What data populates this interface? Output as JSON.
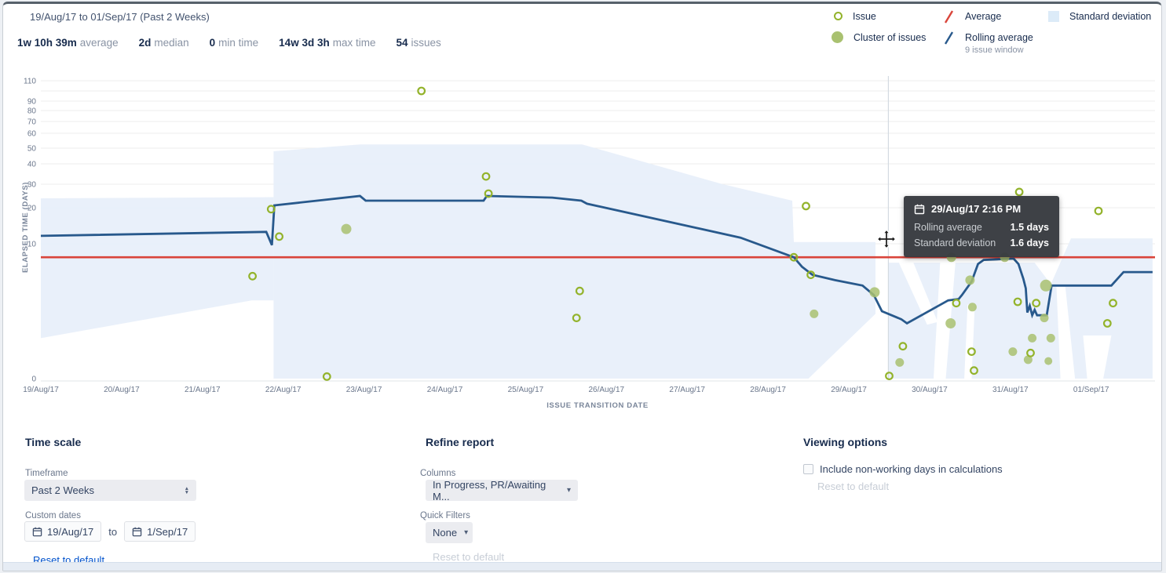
{
  "header": {
    "date_range": "19/Aug/17 to 01/Sep/17 (Past 2 Weeks)",
    "stats": [
      {
        "value": "1w 10h 39m",
        "label": "average"
      },
      {
        "value": "2d",
        "label": "median"
      },
      {
        "value": "0",
        "label": "min time"
      },
      {
        "value": "14w 3d 3h",
        "label": "max time"
      },
      {
        "value": "54",
        "label": "issues"
      }
    ]
  },
  "legend": {
    "issue": "Issue",
    "cluster": "Cluster of issues",
    "average": "Average",
    "rolling": "Rolling average",
    "rolling_sub": "9 issue window",
    "stddev": "Standard deviation"
  },
  "colors": {
    "issue_stroke": "#93b32b",
    "cluster_fill": "#a9c170",
    "average_line": "#d9453b",
    "rolling_line": "#28598c",
    "stddev_band": "#e7effa",
    "grid": "#ededed",
    "tick_text": "#6b778c",
    "axis_title": "#7a869a",
    "link": "#0052cc"
  },
  "chart_data": {
    "type": "line",
    "xlabel": "ISSUE TRANSITION DATE",
    "ylabel": "ELAPSED TIME (DAYS)",
    "x_tick_labels": [
      "19/Aug/17",
      "20/Aug/17",
      "21/Aug/17",
      "22/Aug/17",
      "23/Aug/17",
      "24/Aug/17",
      "25/Aug/17",
      "26/Aug/17",
      "27/Aug/17",
      "28/Aug/17",
      "29/Aug/17",
      "30/Aug/17",
      "31/Aug/17",
      "01/Sep/17"
    ],
    "y_ticks": [
      0,
      10,
      20,
      30,
      40,
      50,
      60,
      70,
      80,
      90,
      110
    ],
    "y_gridlines": [
      10,
      20,
      30,
      40,
      50,
      60,
      70,
      80,
      90,
      100,
      110
    ],
    "y_scale": "nonlinear-compressed-top",
    "average_value": 9,
    "hover_day": 10.49,
    "rolling_average_series": [
      [
        0,
        12.2
      ],
      [
        2.79,
        13.3
      ],
      [
        2.86,
        9.9
      ],
      [
        2.89,
        21
      ],
      [
        3.95,
        25
      ],
      [
        4.02,
        23
      ],
      [
        5.48,
        23
      ],
      [
        5.52,
        25
      ],
      [
        6.33,
        24.3
      ],
      [
        6.69,
        23
      ],
      [
        6.76,
        21.7
      ],
      [
        8.66,
        11.7
      ],
      [
        9.32,
        9
      ],
      [
        9.42,
        8.3
      ],
      [
        9.55,
        7.7
      ],
      [
        9.83,
        7.3
      ],
      [
        10.17,
        6.9
      ],
      [
        10.31,
        6.2
      ],
      [
        10.41,
        5
      ],
      [
        10.65,
        4.4
      ],
      [
        10.72,
        4.1
      ],
      [
        11.23,
        5.8
      ],
      [
        11.36,
        5.9
      ],
      [
        11.4,
        6.2
      ],
      [
        11.52,
        7.2
      ],
      [
        11.6,
        8.5
      ],
      [
        11.67,
        8.8
      ],
      [
        12.04,
        8.9
      ],
      [
        12.1,
        8.5
      ],
      [
        12.16,
        7.4
      ],
      [
        12.19,
        6.7
      ],
      [
        12.21,
        4.9
      ],
      [
        12.24,
        5.4
      ],
      [
        12.27,
        4.7
      ],
      [
        12.3,
        5.1
      ],
      [
        12.33,
        4.7
      ],
      [
        12.45,
        4.7
      ],
      [
        12.51,
        6.9
      ],
      [
        13.25,
        6.9
      ],
      [
        13.4,
        7.9
      ],
      [
        13.76,
        7.9
      ]
    ],
    "issues": [
      [
        2.85,
        19.6
      ],
      [
        2.95,
        12
      ],
      [
        2.62,
        7.6
      ],
      [
        3.54,
        0.15
      ],
      [
        4.71,
        100
      ],
      [
        5.51,
        33.8
      ],
      [
        5.54,
        26
      ],
      [
        6.67,
        6.5
      ],
      [
        6.63,
        4.5
      ],
      [
        9.32,
        9
      ],
      [
        9.47,
        20.7
      ],
      [
        9.53,
        7.7
      ],
      [
        10.67,
        2.4
      ],
      [
        10.5,
        0.2
      ],
      [
        11.33,
        5.6
      ],
      [
        11.52,
        2
      ],
      [
        11.55,
        0.6
      ],
      [
        12.11,
        26.7
      ],
      [
        12.09,
        5.7
      ],
      [
        12.25,
        1.9
      ],
      [
        12.32,
        5.6
      ],
      [
        13.09,
        19.1
      ],
      [
        13.27,
        5.6
      ],
      [
        13.2,
        4.1
      ]
    ],
    "clusters": [
      [
        3.78,
        14.1,
        6.5
      ],
      [
        9.57,
        4.8,
        5.5
      ],
      [
        10.32,
        6.4,
        6.5
      ],
      [
        10.63,
        1.2,
        5.5
      ],
      [
        11.26,
        4.1,
        6.5
      ],
      [
        11.5,
        7.3,
        6
      ],
      [
        11.53,
        5.3,
        5.5
      ],
      [
        12.03,
        2,
        5.5
      ],
      [
        12.22,
        1.4,
        5.5
      ],
      [
        12.27,
        3,
        5.5
      ],
      [
        12.44,
        6.9,
        7.5
      ],
      [
        12.42,
        4.5,
        5.5
      ],
      [
        12.5,
        3,
        5.5
      ],
      [
        12.47,
        1.3,
        5
      ],
      [
        11.27,
        9,
        6
      ],
      [
        11.93,
        9,
        6
      ]
    ],
    "stddev_bands": [
      {
        "top": [
          [
            0,
            24
          ],
          [
            2.88,
            24.5
          ]
        ],
        "bottom": [
          [
            0,
            3
          ],
          [
            2.61,
            5.8
          ],
          [
            2.88,
            5.8
          ]
        ]
      },
      {
        "top": [
          [
            2.88,
            48
          ],
          [
            3.95,
            52.5
          ],
          [
            6.7,
            52.5
          ],
          [
            8.44,
            30
          ],
          [
            9.3,
            23
          ],
          [
            9.32,
            10.5
          ],
          [
            10.33,
            10.5
          ]
        ],
        "bottom": [
          [
            2.88,
            0
          ],
          [
            9.5,
            0
          ],
          [
            10.33,
            4.8
          ]
        ]
      },
      {
        "top": [
          [
            10.49,
            8.6
          ],
          [
            12.3,
            8.6
          ],
          [
            12.5,
            7
          ],
          [
            12.75,
            11.5
          ],
          [
            13.76,
            11.5
          ]
        ],
        "bottom": [
          [
            10.49,
            0
          ],
          [
            13.76,
            0
          ]
        ]
      }
    ]
  },
  "tooltip": {
    "title": "29/Aug/17 2:16 PM",
    "rows": [
      {
        "label": "Rolling average",
        "value": "1.5 days"
      },
      {
        "label": "Standard deviation",
        "value": "1.6 days"
      }
    ]
  },
  "controls": {
    "time_scale": {
      "heading": "Time scale",
      "timeframe_label": "Timeframe",
      "timeframe_value": "Past 2 Weeks",
      "custom_dates_label": "Custom dates",
      "date_from": "19/Aug/17",
      "to_word": "to",
      "date_to": "1/Sep/17",
      "reset": "Reset to default"
    },
    "refine": {
      "heading": "Refine report",
      "columns_label": "Columns",
      "columns_value": "In Progress, PR/Awaiting M...",
      "quick_filters_label": "Quick Filters",
      "quick_filters_value": "None",
      "reset": "Reset to default"
    },
    "viewing": {
      "heading": "Viewing options",
      "checkbox_label": "Include non-working days in calculations",
      "reset": "Reset to default"
    }
  }
}
